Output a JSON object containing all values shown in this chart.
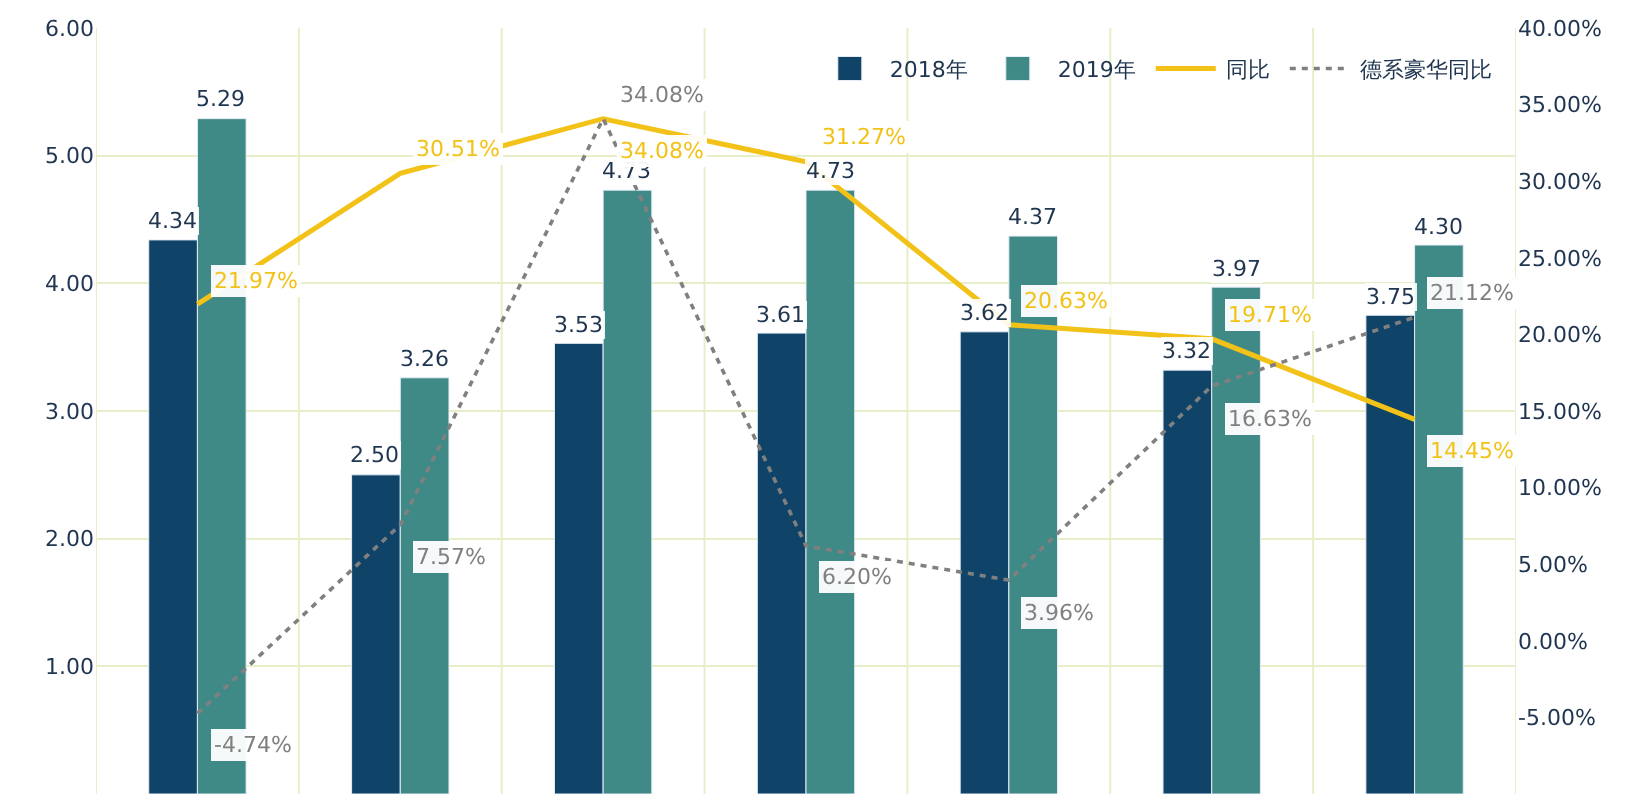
{
  "chart_data": {
    "type": "bar",
    "categories": [
      null,
      null,
      null,
      null,
      null,
      null,
      null
    ],
    "series": [
      {
        "name": "2018年",
        "color": "#0f4468",
        "values": [
          4.34,
          2.5,
          3.53,
          3.61,
          3.62,
          3.32,
          3.75
        ],
        "value_labels": [
          "4.34",
          "2.50",
          "3.53",
          "3.61",
          "3.62",
          "3.32",
          "3.75"
        ]
      },
      {
        "name": "2019年",
        "color": "#3f8987",
        "values": [
          5.29,
          3.26,
          4.73,
          4.73,
          4.37,
          3.97,
          4.3
        ],
        "value_labels": [
          "5.29",
          "3.26",
          "4.73",
          "4.73",
          "4.37",
          "3.97",
          "4.30"
        ]
      },
      {
        "name": "同比",
        "type": "line",
        "axis": "y2",
        "color": "#f2c218",
        "line_style": "solid",
        "values": [
          21.97,
          30.51,
          34.08,
          31.27,
          20.63,
          19.71,
          14.45
        ],
        "value_labels": [
          "21.97%",
          "30.51%",
          "34.08%",
          "31.27%",
          "20.63%",
          "19.71%",
          "14.45%"
        ]
      },
      {
        "name": "德系豪华同比",
        "type": "line",
        "axis": "y2",
        "color": "#808080",
        "line_style": "dotted",
        "values": [
          -4.74,
          7.57,
          34.08,
          6.2,
          3.96,
          16.63,
          21.12
        ],
        "value_labels": [
          "-4.74%",
          "7.57%",
          "34.08%",
          "6.20%",
          "3.96%",
          "16.63%",
          "21.12%"
        ]
      }
    ],
    "data_labels": true,
    "ylim": [
      0,
      6
    ],
    "yticks": [
      {
        "value": 1,
        "label": "1.00"
      },
      {
        "value": 2,
        "label": "2.00"
      },
      {
        "value": 3,
        "label": "3.00"
      },
      {
        "value": 4,
        "label": "4.00"
      },
      {
        "value": 5,
        "label": "5.00"
      },
      {
        "value": 6,
        "label": "6.00"
      }
    ],
    "y2lim": [
      -10,
      40
    ],
    "y2ticks": [
      {
        "value": -5,
        "label": "-5.00%"
      },
      {
        "value": 0,
        "label": "0.00%"
      },
      {
        "value": 5,
        "label": "5.00%"
      },
      {
        "value": 10,
        "label": "10.00%"
      },
      {
        "value": 15,
        "label": "15.00%"
      },
      {
        "value": 20,
        "label": "20.00%"
      },
      {
        "value": 25,
        "label": "25.00%"
      },
      {
        "value": 30,
        "label": "30.00%"
      },
      {
        "value": 35,
        "label": "35.00%"
      },
      {
        "value": 40,
        "label": "40.00%"
      }
    ],
    "grid": true,
    "legend": "top right"
  }
}
